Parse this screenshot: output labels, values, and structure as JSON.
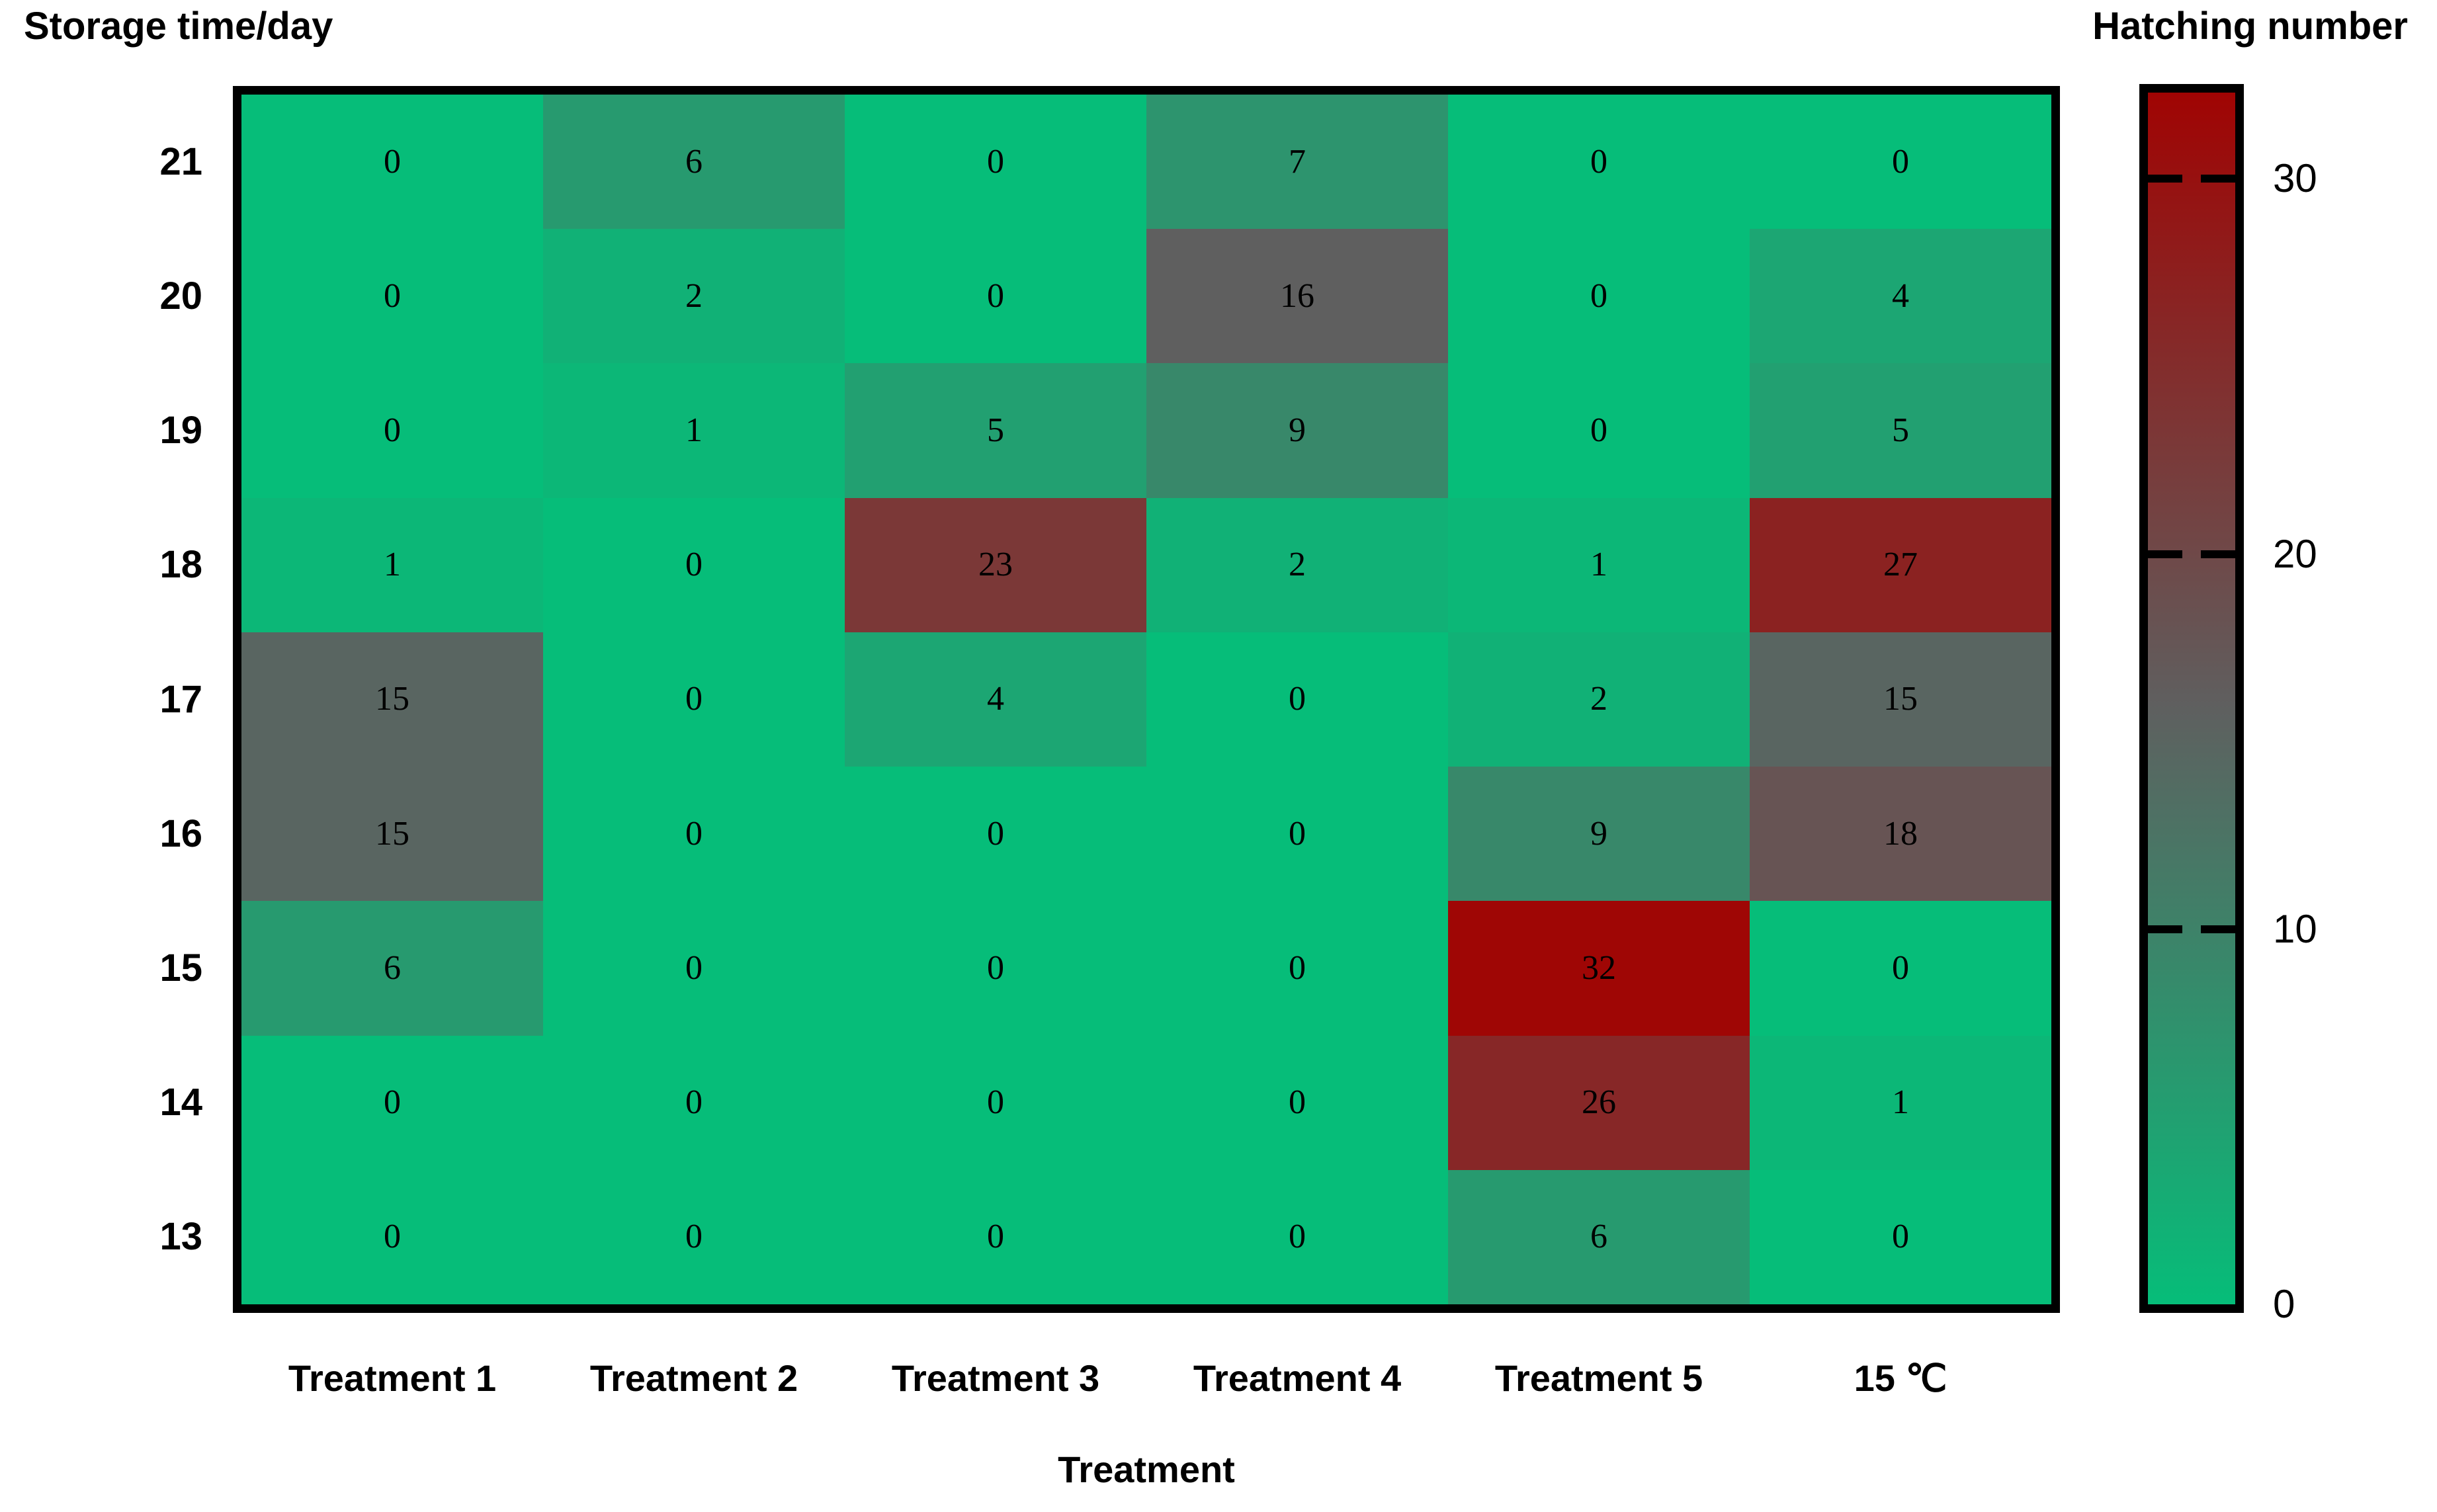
{
  "chart_data": {
    "type": "heatmap",
    "title": "",
    "xlabel": "Treatment",
    "ylabel": "Storage time/day",
    "legend_title": "Hatching number",
    "legend_position": "right",
    "grid": false,
    "x_categories": [
      "Treatment 1",
      "Treatment 2",
      "Treatment 3",
      "Treatment 4",
      "Treatment 5",
      "15 ℃"
    ],
    "y_categories": [
      "21",
      "20",
      "19",
      "18",
      "17",
      "16",
      "15",
      "14",
      "13"
    ],
    "values": [
      [
        0,
        6,
        0,
        7,
        0,
        0
      ],
      [
        0,
        2,
        0,
        16,
        0,
        4
      ],
      [
        0,
        1,
        5,
        9,
        0,
        5
      ],
      [
        1,
        0,
        23,
        2,
        1,
        27
      ],
      [
        15,
        0,
        4,
        0,
        2,
        15
      ],
      [
        15,
        0,
        0,
        0,
        9,
        18
      ],
      [
        6,
        0,
        0,
        0,
        32,
        0
      ],
      [
        0,
        0,
        0,
        0,
        26,
        1
      ],
      [
        0,
        0,
        0,
        0,
        6,
        0
      ]
    ],
    "color_scale": {
      "min": 0,
      "max": 32.3,
      "anchors": [
        {
          "value": 0,
          "color": "#06bd79"
        },
        {
          "value": 16,
          "color": "#5f5f5f"
        },
        {
          "value": 32.3,
          "color": "#a00403"
        }
      ]
    },
    "colorbar_ticks": [
      0,
      10,
      20,
      30
    ],
    "colorbar_tick_labels": [
      "0",
      "10",
      "20",
      "30"
    ]
  }
}
